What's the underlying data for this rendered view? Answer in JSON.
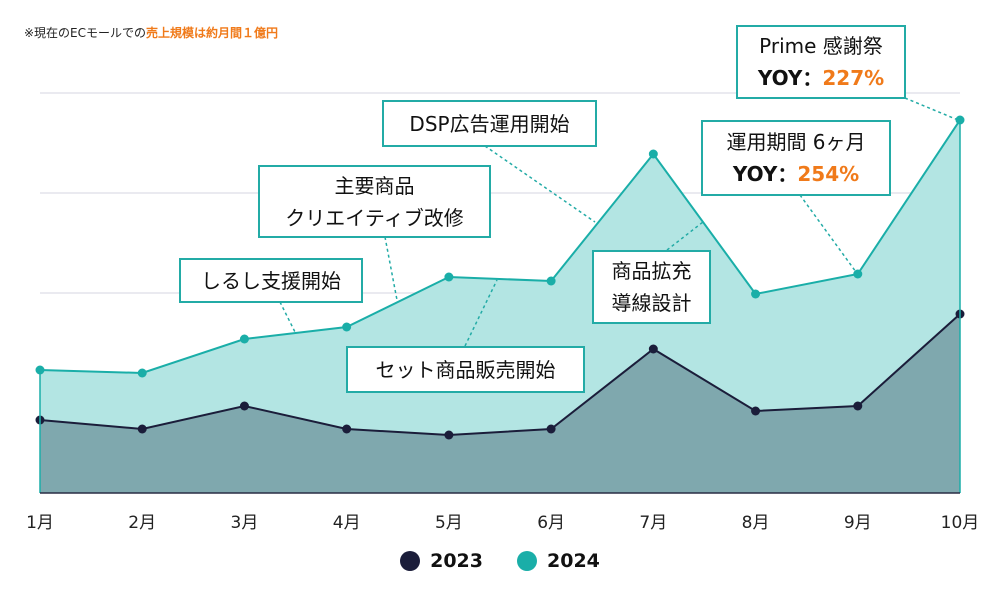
{
  "note": {
    "prefix": "※現在のECモールでの",
    "highlight": "売上規模は約月間１億円"
  },
  "chart_data": {
    "type": "area",
    "categories": [
      "1月",
      "2月",
      "3月",
      "4月",
      "5月",
      "6月",
      "7月",
      "8月",
      "9月",
      "10月"
    ],
    "ylim": [
      0,
      4
    ],
    "grid": true,
    "legend_position": "bottom",
    "series": [
      {
        "name": "2023",
        "color": "#1b1d3a",
        "fill": "#7fa8ae",
        "values": [
          0.73,
          0.64,
          0.87,
          0.64,
          0.58,
          0.64,
          1.44,
          0.82,
          0.87,
          1.79
        ]
      },
      {
        "name": "2024",
        "color": "#1aaea8",
        "fill": "#b3e5e3",
        "values": [
          1.23,
          1.2,
          1.54,
          1.66,
          2.16,
          2.12,
          3.39,
          1.99,
          2.19,
          3.73
        ]
      }
    ],
    "annotations": [
      {
        "id": "support",
        "lines": [
          "しるし支援開始"
        ]
      },
      {
        "id": "creative",
        "lines": [
          "主要商品",
          "クリエイティブ改修"
        ]
      },
      {
        "id": "set",
        "lines": [
          "セット商品販売開始"
        ]
      },
      {
        "id": "dsp",
        "lines": [
          "DSP広告運用開始"
        ]
      },
      {
        "id": "expand",
        "lines": [
          "商品拡充",
          "導線設計"
        ]
      },
      {
        "id": "six",
        "lines": [
          "運用期間 6ヶ月"
        ],
        "yoy_label": "YOY：",
        "yoy_value": "254%"
      },
      {
        "id": "prime",
        "lines": [
          "Prime 感謝祭"
        ],
        "yoy_label": "YOY：",
        "yoy_value": "227%"
      }
    ]
  }
}
